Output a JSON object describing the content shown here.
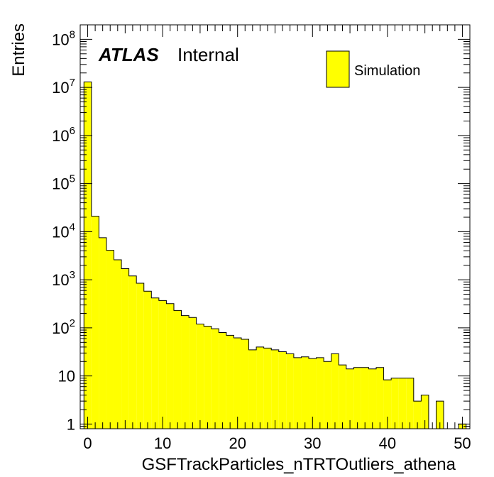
{
  "chart_data": {
    "type": "bar",
    "style": "histogram-step",
    "xlabel": "GSFTrackParticles_nTRTOutliers_athena",
    "ylabel": "Entries",
    "xlim": [
      -1,
      51
    ],
    "ylim": [
      0.8,
      200000000
    ],
    "yscale": "log",
    "grid": false,
    "legend_position": "top-right",
    "bin_width": 1,
    "bin_start": -0.5,
    "x_ticks": [
      0,
      10,
      20,
      30,
      40,
      50
    ],
    "x_tick_labels": [
      "0",
      "10",
      "20",
      "30",
      "40",
      "50"
    ],
    "y_ticks": [
      1,
      10,
      100,
      1000,
      10000,
      100000,
      1000000,
      10000000,
      100000000
    ],
    "y_tick_labels": [
      {
        "base": "1",
        "exp": ""
      },
      {
        "base": "10",
        "exp": ""
      },
      {
        "base": "10",
        "exp": "2"
      },
      {
        "base": "10",
        "exp": "3"
      },
      {
        "base": "10",
        "exp": "4"
      },
      {
        "base": "10",
        "exp": "5"
      },
      {
        "base": "10",
        "exp": "6"
      },
      {
        "base": "10",
        "exp": "7"
      },
      {
        "base": "10",
        "exp": "8"
      }
    ],
    "series": [
      {
        "name": "Simulation",
        "color": "#ffff00",
        "edge_color": "#000000",
        "values": [
          13000000,
          21000,
          7500,
          4100,
          2600,
          1700,
          1200,
          850,
          580,
          420,
          370,
          320,
          230,
          180,
          165,
          120,
          108,
          96,
          80,
          70,
          62,
          58,
          35,
          40,
          38,
          35,
          32,
          29,
          24,
          25,
          23,
          24,
          20,
          29,
          17,
          14,
          15,
          15,
          14,
          15,
          8.3,
          9,
          9,
          9,
          3,
          4,
          0,
          3,
          0,
          0,
          1
        ]
      }
    ]
  },
  "annotations": {
    "atlas": "ATLAS",
    "internal": "Internal"
  },
  "legend": {
    "label": "Simulation",
    "color": "#ffff00"
  }
}
